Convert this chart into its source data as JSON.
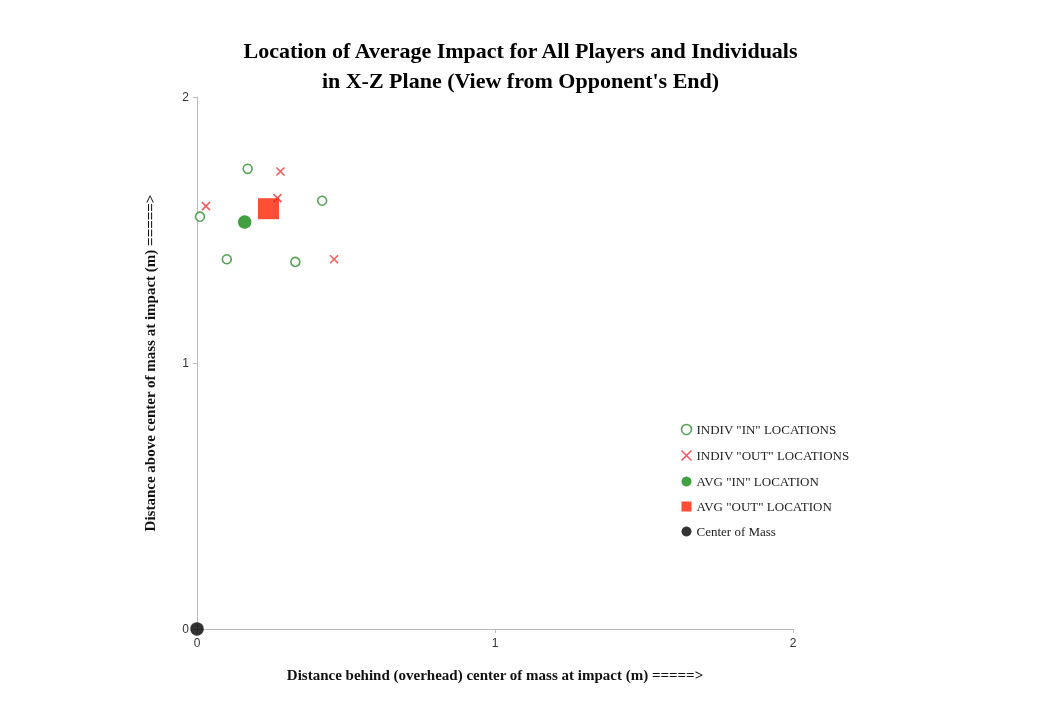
{
  "chart_data": {
    "type": "scatter",
    "title": "Location of Average Impact for All Players and Individuals\nin X-Z Plane (View from Opponent's End)",
    "xlabel": "Distance behind (overhead) center of mass at impact (m) =====>",
    "ylabel": "Distance above center of mass at impact (m) =====>",
    "xlim": [
      0,
      2
    ],
    "xticks": [
      0,
      1,
      2
    ],
    "ylim": [
      0,
      2
    ],
    "yticks": [
      0,
      1,
      2
    ],
    "grid": false,
    "legend": "bottom right",
    "series": [
      {
        "name": "INDIV \"IN\" LOCATIONS",
        "color": "#2e8b2e",
        "marker": "circle",
        "x": [
          0.01,
          0.17,
          0.1,
          0.33,
          0.42
        ],
        "values": [
          1.55,
          1.73,
          1.39,
          1.38,
          1.61
        ]
      },
      {
        "name": "INDIV \"OUT\" LOCATIONS",
        "color": "#ee3333",
        "marker": "cross",
        "x": [
          0.03,
          0.28,
          0.27,
          0.46
        ],
        "values": [
          1.59,
          1.72,
          1.62,
          1.39
        ]
      },
      {
        "name": "AVG \"IN\" LOCATION",
        "color": "#118811",
        "marker": "circle",
        "x": [
          0.16
        ],
        "values": [
          1.53
        ]
      },
      {
        "name": "AVG \"OUT\" LOCATION",
        "color": "#ff2200",
        "marker": "square",
        "x": [
          0.24
        ],
        "values": [
          1.58
        ]
      },
      {
        "name": "Center of Mass",
        "color": "#000000",
        "marker": "circle",
        "x": [
          0
        ],
        "values": [
          0
        ]
      }
    ]
  }
}
